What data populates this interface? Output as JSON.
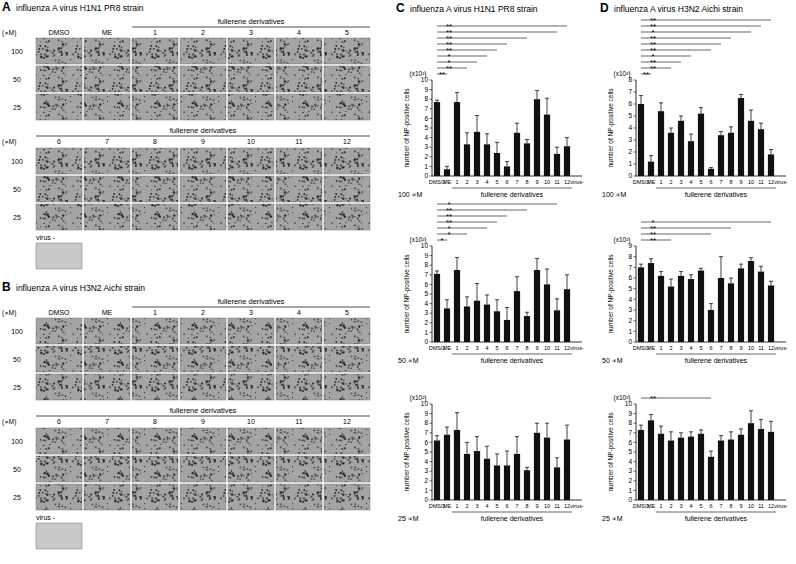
{
  "image_panels": [
    {
      "letter": "A",
      "title": "influenza A virus H1N1 PR8 strain",
      "unit": "(∝M)",
      "concentrations": [
        "100",
        "50",
        "25"
      ],
      "controls": [
        "DMSO",
        "ME"
      ],
      "group_label": "fullerene derivatives",
      "rows": [
        [
          "1",
          "2",
          "3",
          "4",
          "5"
        ],
        [
          "6",
          "7",
          "8",
          "9",
          "10",
          "11",
          "12"
        ]
      ],
      "negative": "virus -"
    },
    {
      "letter": "B",
      "title": "influenza A virus H3N2 Aichi strain",
      "unit": "(∝M)",
      "concentrations": [
        "100",
        "50",
        "25"
      ],
      "controls": [
        "DMSO",
        "ME"
      ],
      "group_label": "fullerene derivatives",
      "rows": [
        [
          "1",
          "2",
          "3",
          "4",
          "5"
        ],
        [
          "6",
          "7",
          "8",
          "9",
          "10",
          "11",
          "12"
        ]
      ],
      "negative": "virus -"
    }
  ],
  "chart_panels": [
    {
      "letter": "C",
      "title": "influenza A virus H1N1 PR8 strain"
    },
    {
      "letter": "D",
      "title": "influenza A virus H3N2 Aichi strain"
    }
  ],
  "chart_data": [
    {
      "type": "bar",
      "categories": [
        "DMSO",
        "ME",
        "1",
        "2",
        "3",
        "4",
        "5",
        "6",
        "7",
        "8",
        "9",
        "10",
        "11",
        "12",
        "virus-"
      ],
      "values": [
        7.7,
        0.7,
        7.7,
        3.3,
        4.6,
        3.3,
        2.4,
        1.0,
        4.5,
        3.4,
        8.0,
        6.4,
        2.3,
        3.1,
        0
      ],
      "errors": [
        0.2,
        0.3,
        1.0,
        1.2,
        1.7,
        1.1,
        1.1,
        0.5,
        1.0,
        0.4,
        0.9,
        1.7,
        0.7,
        0.9,
        null
      ],
      "color": "#111111",
      "ylim": [
        0,
        10
      ],
      "yticks": [
        0,
        1,
        2,
        3,
        4,
        5,
        6,
        7,
        8,
        9,
        10
      ],
      "grid": false,
      "y_label": "number of NP-positive cells",
      "y_unit": "(x10²)",
      "concentration": "100 ∝M",
      "group_label": "fullerene derivatives",
      "annotations": [
        {
          "from": "DMSO",
          "to": "ME",
          "label": "**"
        },
        {
          "from": "DMSO",
          "to": "2",
          "label": "**"
        },
        {
          "from": "DMSO",
          "to": "3",
          "label": "*"
        },
        {
          "from": "DMSO",
          "to": "4",
          "label": "*"
        },
        {
          "from": "DMSO",
          "to": "5",
          "label": "**"
        },
        {
          "from": "DMSO",
          "to": "6",
          "label": "**"
        },
        {
          "from": "DMSO",
          "to": "8",
          "label": "**"
        },
        {
          "from": "DMSO",
          "to": "11",
          "label": "**"
        },
        {
          "from": "DMSO",
          "to": "12",
          "label": "**"
        }
      ]
    },
    {
      "type": "bar",
      "categories": [
        "DMSO",
        "ME",
        "1",
        "2",
        "3",
        "4",
        "5",
        "6",
        "7",
        "8",
        "9",
        "10",
        "11",
        "12",
        "virus-"
      ],
      "values": [
        7.1,
        3.5,
        7.5,
        3.7,
        4.3,
        3.9,
        3.2,
        2.3,
        5.3,
        2.7,
        7.5,
        6.0,
        3.3,
        5.5,
        0
      ],
      "errors": [
        0.3,
        0.9,
        1.3,
        1.0,
        1.8,
        1.0,
        1.2,
        1.3,
        1.5,
        0.4,
        1.2,
        1.6,
        1.2,
        1.5,
        null
      ],
      "color": "#111111",
      "ylim": [
        0,
        10
      ],
      "yticks": [
        0,
        1,
        2,
        3,
        4,
        5,
        6,
        7,
        8,
        9,
        10
      ],
      "grid": false,
      "y_label": "number of NP-positive cells",
      "y_unit": "(x10²)",
      "concentration": "50 ∝M",
      "group_label": "fullerene derivatives",
      "annotations": [
        {
          "from": "DMSO",
          "to": "ME",
          "label": "*"
        },
        {
          "from": "DMSO",
          "to": "2",
          "label": "*"
        },
        {
          "from": "DMSO",
          "to": "4",
          "label": "*"
        },
        {
          "from": "DMSO",
          "to": "5",
          "label": "**"
        },
        {
          "from": "DMSO",
          "to": "6",
          "label": "**"
        },
        {
          "from": "DMSO",
          "to": "8",
          "label": "**"
        },
        {
          "from": "DMSO",
          "to": "11",
          "label": "*"
        }
      ]
    },
    {
      "type": "bar",
      "categories": [
        "DMSO",
        "ME",
        "1",
        "2",
        "3",
        "4",
        "5",
        "6",
        "7",
        "8",
        "9",
        "10",
        "11",
        "12",
        "virus-"
      ],
      "values": [
        6.2,
        6.8,
        7.3,
        4.8,
        5.1,
        4.3,
        3.6,
        3.6,
        4.8,
        3.1,
        7.0,
        6.5,
        3.4,
        6.3,
        0
      ],
      "errors": [
        0.5,
        0.8,
        1.8,
        1.2,
        1.5,
        1.3,
        1.2,
        1.5,
        1.8,
        0.3,
        1.0,
        1.5,
        1.0,
        1.5,
        null
      ],
      "color": "#111111",
      "ylim": [
        0,
        10
      ],
      "yticks": [
        0,
        1,
        2,
        3,
        4,
        5,
        6,
        7,
        8,
        9,
        10
      ],
      "grid": false,
      "y_label": "number of NP-positive cells",
      "y_unit": "(x10²)",
      "concentration": "25 ∝M",
      "group_label": "fullerene derivatives",
      "annotations": []
    },
    {
      "type": "bar",
      "categories": [
        "DMSO",
        "ME",
        "1",
        "2",
        "3",
        "4",
        "5",
        "6",
        "7",
        "8",
        "9",
        "10",
        "11",
        "12",
        "virus-"
      ],
      "values": [
        6.0,
        1.2,
        5.4,
        3.6,
        4.6,
        2.9,
        5.2,
        0.6,
        3.4,
        3.6,
        6.5,
        4.6,
        3.9,
        1.8,
        0
      ],
      "errors": [
        0.7,
        0.5,
        0.7,
        0.4,
        0.4,
        0.6,
        0.5,
        0.1,
        0.3,
        0.5,
        0.3,
        0.9,
        0.5,
        0.4,
        null
      ],
      "color": "#111111",
      "ylim": [
        0,
        8
      ],
      "yticks": [
        0,
        1,
        2,
        3,
        4,
        5,
        6,
        7,
        8
      ],
      "grid": false,
      "y_label": "number of NP-positive cells",
      "y_unit": "(x10²)",
      "concentration": "100 ∝M",
      "group_label": "fullerene derivatives",
      "annotations": [
        {
          "from": "DMSO",
          "to": "ME",
          "label": "**"
        },
        {
          "from": "DMSO",
          "to": "2",
          "label": "**"
        },
        {
          "from": "DMSO",
          "to": "3",
          "label": "**"
        },
        {
          "from": "DMSO",
          "to": "4",
          "label": "*"
        },
        {
          "from": "DMSO",
          "to": "6",
          "label": "**"
        },
        {
          "from": "DMSO",
          "to": "7",
          "label": "**"
        },
        {
          "from": "DMSO",
          "to": "8",
          "label": "**"
        },
        {
          "from": "DMSO",
          "to": "10",
          "label": "*"
        },
        {
          "from": "DMSO",
          "to": "11",
          "label": "**"
        },
        {
          "from": "DMSO",
          "to": "12",
          "label": "**"
        }
      ]
    },
    {
      "type": "bar",
      "categories": [
        "DMSO",
        "ME",
        "1",
        "2",
        "3",
        "4",
        "5",
        "6",
        "7",
        "8",
        "9",
        "10",
        "11",
        "12",
        "virus-"
      ],
      "values": [
        7.0,
        7.4,
        6.2,
        5.2,
        6.2,
        5.9,
        6.7,
        3.0,
        6.0,
        5.5,
        6.9,
        7.6,
        6.6,
        5.3,
        0
      ],
      "errors": [
        0.3,
        0.4,
        0.4,
        0.7,
        0.4,
        0.4,
        0.2,
        0.6,
        2.0,
        0.5,
        0.4,
        0.3,
        0.5,
        0.4,
        null
      ],
      "color": "#111111",
      "ylim": [
        0,
        9
      ],
      "yticks": [
        0,
        1,
        2,
        3,
        4,
        5,
        6,
        7,
        8,
        9
      ],
      "grid": false,
      "y_label": "number of NP-positive cells",
      "y_unit": "(x10²)",
      "concentration": "50 ∝M",
      "group_label": "fullerene derivatives",
      "annotations": [
        {
          "from": "DMSO",
          "to": "2",
          "label": "**"
        },
        {
          "from": "DMSO",
          "to": "6",
          "label": "**"
        },
        {
          "from": "DMSO",
          "to": "8",
          "label": "**"
        },
        {
          "from": "DMSO",
          "to": "12",
          "label": "*"
        }
      ]
    },
    {
      "type": "bar",
      "categories": [
        "DMSO",
        "ME",
        "1",
        "2",
        "3",
        "4",
        "5",
        "6",
        "7",
        "8",
        "9",
        "10",
        "11",
        "12",
        "virus-"
      ],
      "values": [
        7.3,
        8.3,
        6.9,
        6.2,
        6.5,
        6.6,
        6.9,
        4.5,
        6.2,
        6.3,
        6.8,
        8.0,
        7.4,
        7.1,
        0
      ],
      "errors": [
        0.5,
        0.6,
        0.8,
        0.9,
        0.5,
        0.5,
        0.4,
        0.6,
        0.5,
        0.8,
        0.6,
        1.3,
        1.0,
        1.1,
        null
      ],
      "color": "#111111",
      "ylim": [
        0,
        10
      ],
      "yticks": [
        0,
        1,
        2,
        3,
        4,
        5,
        6,
        7,
        8,
        9,
        10
      ],
      "grid": false,
      "y_label": "number of NP-positive cells",
      "y_unit": "(x10²)",
      "concentration": "25 ∝M",
      "group_label": "fullerene derivatives",
      "annotations": [
        {
          "from": "DMSO",
          "to": "6",
          "label": "**"
        }
      ]
    }
  ]
}
